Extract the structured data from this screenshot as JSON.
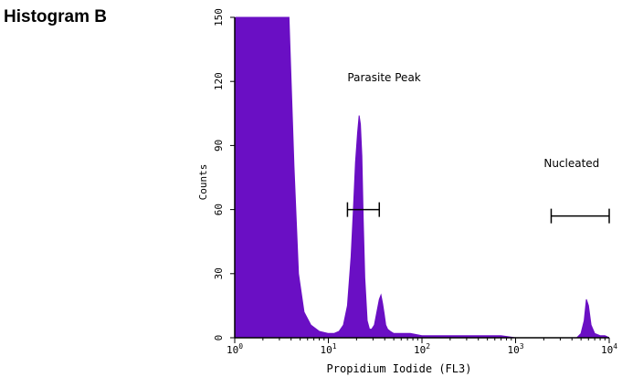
{
  "page": {
    "title": "Histogram B"
  },
  "colors": {
    "fill": "#6a0fc4",
    "axis": "#000000",
    "background": "#ffffff"
  },
  "chart_data": {
    "type": "area",
    "title": "",
    "xlabel": "Propidium Iodide (FL3)",
    "ylabel": "Counts",
    "xscale": "log",
    "xlim": [
      1,
      10000
    ],
    "ylim": [
      0,
      150
    ],
    "yticks": [
      0,
      30,
      60,
      90,
      120,
      150
    ],
    "xticks": [
      {
        "value": 1,
        "base": "10",
        "exp": "0"
      },
      {
        "value": 10,
        "base": "10",
        "exp": "1"
      },
      {
        "value": 100,
        "base": "10",
        "exp": "2"
      },
      {
        "value": 1000,
        "base": "10",
        "exp": "3"
      },
      {
        "value": 10000,
        "base": "10",
        "exp": "4"
      }
    ],
    "grid": false,
    "series": [
      {
        "x": [
          1,
          1.02,
          1.5,
          2,
          3,
          3.8,
          4.3,
          4.8,
          5.5,
          6.5,
          8,
          10,
          11.5,
          13,
          14.5,
          16,
          17.5,
          18.5,
          19.5,
          20.5,
          21.3,
          22,
          22.8,
          23.6,
          24.5,
          26,
          27.5,
          29,
          31,
          33,
          35,
          36.5,
          38,
          39.5,
          41,
          43,
          46,
          50,
          55,
          62,
          75,
          100,
          150,
          250,
          400,
          700,
          1000,
          1500,
          2500,
          3500,
          4500,
          5000,
          5400,
          5700,
          6000,
          6400,
          7000,
          8000,
          9000,
          10000
        ],
        "y": [
          0,
          150,
          150,
          150,
          150,
          150,
          80,
          30,
          12,
          6,
          3,
          2,
          2,
          3,
          6,
          15,
          38,
          60,
          82,
          96,
          104,
          100,
          85,
          55,
          28,
          8,
          4,
          4,
          6,
          12,
          18,
          20,
          16,
          11,
          6,
          4,
          3,
          2,
          2,
          2,
          2,
          1,
          1,
          1,
          1,
          1,
          0,
          0,
          0,
          0,
          0,
          2,
          8,
          18,
          15,
          6,
          2,
          1,
          1,
          0
        ]
      }
    ],
    "annotations": [
      {
        "label": "Parasite Peak",
        "gate_start": 16,
        "gate_end": 35,
        "gate_y": 60,
        "label_x": 16,
        "label_y": 120
      },
      {
        "label": "Nucleated",
        "gate_start": 2400,
        "gate_end": 10000,
        "gate_y": 57,
        "label_x": 2000,
        "label_y": 80
      }
    ]
  }
}
